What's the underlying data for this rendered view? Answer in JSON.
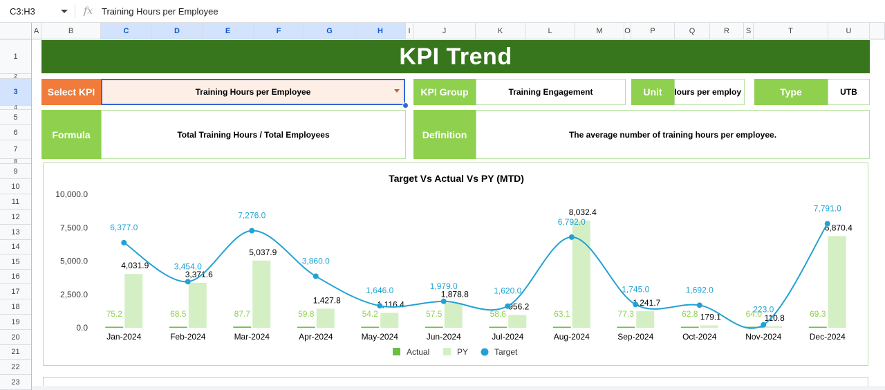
{
  "formula_bar": {
    "name_box": "C3:H3",
    "fx_symbol": "fx",
    "content": "Training Hours per Employee"
  },
  "columns": [
    "A",
    "B",
    "C",
    "D",
    "E",
    "F",
    "G",
    "H",
    "I",
    "J",
    "K",
    "L",
    "M",
    "O",
    "P",
    "Q",
    "R",
    "S",
    "T",
    "U"
  ],
  "rows": [
    "1",
    "2",
    "3",
    "4",
    "5",
    "6",
    "7",
    "8",
    "9",
    "10",
    "11",
    "12",
    "13",
    "14",
    "15",
    "16",
    "17",
    "18",
    "19",
    "20",
    "21",
    "22",
    "23"
  ],
  "dashboard": {
    "title": "KPI Trend",
    "select_kpi_label": "Select KPI",
    "select_kpi_value": "Training Hours per Employee",
    "kpi_group_label": "KPI Group",
    "kpi_group_value": "Training Engagement",
    "unit_label": "Unit",
    "unit_value": "Hours per employee",
    "type_label": "Type",
    "type_value": "UTB",
    "formula_label": "Formula",
    "formula_value": "Total Training Hours / Total Employees",
    "definition_label": "Definition",
    "definition_value": "The average number of training hours per employee."
  },
  "colors": {
    "banner": "#38761d",
    "label_orange": "#f07b3a",
    "label_green": "#8fd14f",
    "actual_bar": "#6abf3f",
    "py_bar": "#d4efc4",
    "target_line": "#22a2d4",
    "target_label": "#22a2d4",
    "actual_label": "#8fd14f"
  },
  "chart_data": {
    "type": "bar",
    "title": "Target Vs Actual Vs PY (MTD)",
    "categories": [
      "Jan-2024",
      "Feb-2024",
      "Mar-2024",
      "Apr-2024",
      "May-2024",
      "Jun-2024",
      "Jul-2024",
      "Aug-2024",
      "Sep-2024",
      "Oct-2024",
      "Nov-2024",
      "Dec-2024"
    ],
    "series": [
      {
        "name": "Actual",
        "kind": "bar",
        "values": [
          75.2,
          68.5,
          87.7,
          59.8,
          54.2,
          57.5,
          58.6,
          63.1,
          77.3,
          62.8,
          64.0,
          69.3
        ],
        "labels": [
          "75.2",
          "68.5",
          "87.7",
          "59.8",
          "54.2",
          "57.5",
          "58.6",
          "63.1",
          "77.3",
          "62.8",
          "64.0",
          "69.3"
        ]
      },
      {
        "name": "PY",
        "kind": "bar",
        "values": [
          4031.9,
          3371.6,
          5037.9,
          1427.8,
          1116.4,
          1878.8,
          956.2,
          8032.4,
          1241.7,
          179.1,
          110.8,
          6870.4
        ],
        "labels": [
          "4,031.9",
          "3,371.6",
          "5,037.9",
          "1,427.8",
          "1,116.4",
          "1,878.8",
          "956.2",
          "8,032.4",
          "1,241.7",
          "179.1",
          "110.8",
          "6,870.4"
        ]
      },
      {
        "name": "Target",
        "kind": "line",
        "values": [
          6377.0,
          3454.0,
          7276.0,
          3860.0,
          1646.0,
          1979.0,
          1620.0,
          6792.0,
          1745.0,
          1692.0,
          223.0,
          7791.0
        ],
        "labels": [
          "6,377.0",
          "3,454.0",
          "7,276.0",
          "3,860.0",
          "1,646.0",
          "1,979.0",
          "1,620.0",
          "6,792.0",
          "1,745.0",
          "1,692.0",
          "223.0",
          "7,791.0"
        ]
      }
    ],
    "y_ticks": [
      "0.0",
      "2,500.0",
      "5,000.0",
      "7,500.0",
      "10,000.0"
    ],
    "ylim": [
      0,
      10000
    ],
    "grid": false,
    "legend_position": "bottom"
  }
}
